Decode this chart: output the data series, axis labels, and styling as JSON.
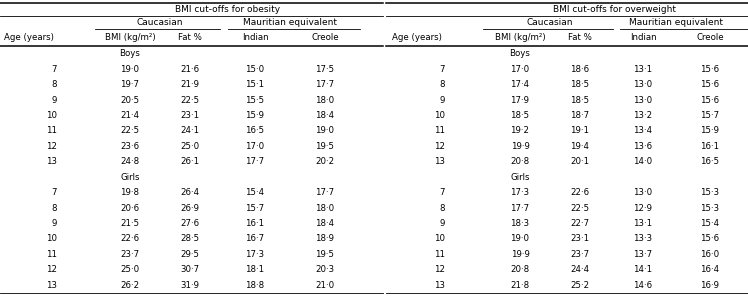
{
  "col_header_top_ob": "BMI cut-offs for obesity",
  "col_header_top_ow": "BMI cut-offs for overweight",
  "boys_obesity": [
    [
      "7",
      "19·0",
      "21·6",
      "15·0",
      "17·5"
    ],
    [
      "8",
      "19·7",
      "21·9",
      "15·1",
      "17·7"
    ],
    [
      "9",
      "20·5",
      "22·5",
      "15·5",
      "18·0"
    ],
    [
      "10",
      "21·4",
      "23·1",
      "15·9",
      "18·4"
    ],
    [
      "11",
      "22·5",
      "24·1",
      "16·5",
      "19·0"
    ],
    [
      "12",
      "23·6",
      "25·0",
      "17·0",
      "19·5"
    ],
    [
      "13",
      "24·8",
      "26·1",
      "17·7",
      "20·2"
    ]
  ],
  "girls_obesity": [
    [
      "7",
      "19·8",
      "26·4",
      "15·4",
      "17·7"
    ],
    [
      "8",
      "20·6",
      "26·9",
      "15·7",
      "18·0"
    ],
    [
      "9",
      "21·5",
      "27·6",
      "16·1",
      "18·4"
    ],
    [
      "10",
      "22·6",
      "28·5",
      "16·7",
      "18·9"
    ],
    [
      "11",
      "23·7",
      "29·5",
      "17·3",
      "19·5"
    ],
    [
      "12",
      "25·0",
      "30·7",
      "18·1",
      "20·3"
    ],
    [
      "13",
      "26·2",
      "31·9",
      "18·8",
      "21·0"
    ]
  ],
  "boys_overweight": [
    [
      "7",
      "17·0",
      "18·6",
      "13·1",
      "15·6"
    ],
    [
      "8",
      "17·4",
      "18·5",
      "13·0",
      "15·6"
    ],
    [
      "9",
      "17·9",
      "18·5",
      "13·0",
      "15·6"
    ],
    [
      "10",
      "18·5",
      "18·7",
      "13·2",
      "15·7"
    ],
    [
      "11",
      "19·2",
      "19·1",
      "13·4",
      "15·9"
    ],
    [
      "12",
      "19·9",
      "19·4",
      "13·6",
      "16·1"
    ],
    [
      "13",
      "20·8",
      "20·1",
      "14·0",
      "16·5"
    ]
  ],
  "girls_overweight": [
    [
      "7",
      "17·3",
      "22·6",
      "13·0",
      "15·3"
    ],
    [
      "8",
      "17·7",
      "22·5",
      "12·9",
      "15·3"
    ],
    [
      "9",
      "18·3",
      "22·7",
      "13·1",
      "15·4"
    ],
    [
      "10",
      "19·0",
      "23·1",
      "13·3",
      "15·6"
    ],
    [
      "11",
      "19·9",
      "23·7",
      "13·7",
      "16·0"
    ],
    [
      "12",
      "20·8",
      "24·4",
      "14·1",
      "16·4"
    ],
    [
      "13",
      "21·8",
      "25·2",
      "14·6",
      "16·9"
    ]
  ],
  "bg": "#ffffff",
  "fg": "#000000",
  "fs_data": 6.2,
  "fs_header": 6.5
}
